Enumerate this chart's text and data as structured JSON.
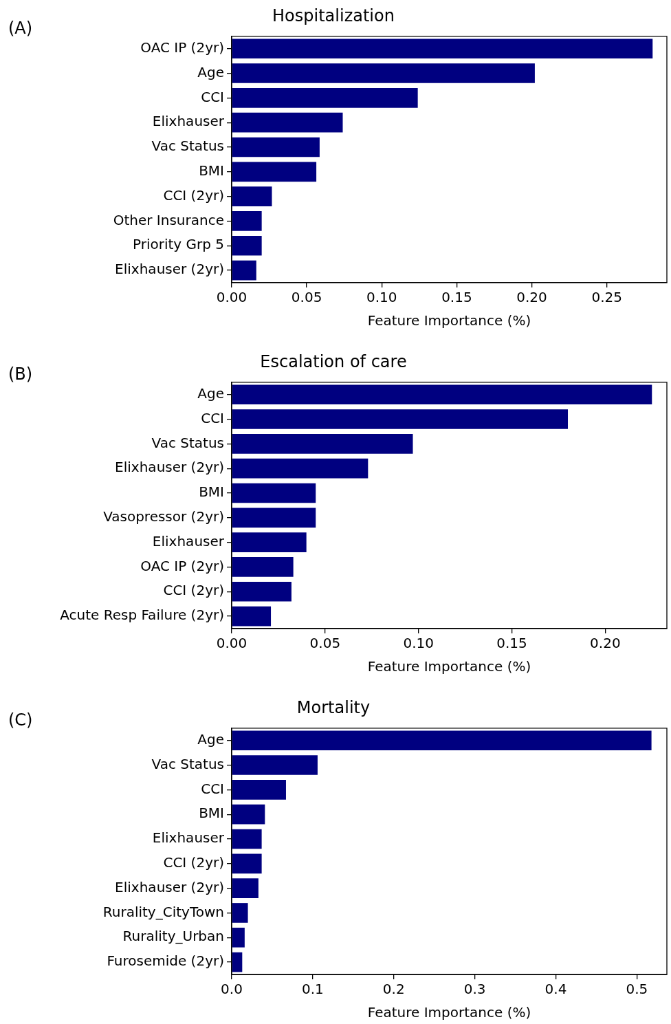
{
  "chart_data": [
    {
      "type": "bar",
      "orientation": "horizontal",
      "title": "Hospitalization",
      "xlabel": "Feature Importance (%)",
      "annotations": [
        "(A)"
      ],
      "grid": false,
      "legend": false,
      "categories": [
        "OAC IP (2yr)",
        "Age",
        "CCI",
        "Elixhauser",
        "Vac Status",
        "BMI",
        "CCI (2yr)",
        "Other Insurance",
        "Priority Grp 5",
        "Elixhauser (2yr)"
      ],
      "values": [
        0.2805,
        0.202,
        0.124,
        0.074,
        0.0586,
        0.0564,
        0.0268,
        0.02,
        0.02,
        0.0164
      ],
      "color": "#000080",
      "xlim": [
        0,
        0.29
      ],
      "xticks": [
        {
          "value": 0,
          "label": "0.00"
        },
        {
          "value": 0.05,
          "label": "0.05"
        },
        {
          "value": 0.1,
          "label": "0.10"
        },
        {
          "value": 0.15,
          "label": "0.15"
        },
        {
          "value": 0.2,
          "label": "0.20"
        },
        {
          "value": 0.25,
          "label": "0.25"
        }
      ]
    },
    {
      "type": "bar",
      "orientation": "horizontal",
      "title": "Escalation of care",
      "xlabel": "Feature Importance (%)",
      "annotations": [
        "(B)"
      ],
      "grid": false,
      "legend": false,
      "categories": [
        "Age",
        "CCI",
        "Vac Status",
        "Elixhauser (2yr)",
        "BMI",
        "Vasopressor (2yr)",
        "Elixhauser",
        "OAC IP (2yr)",
        "CCI (2yr)",
        "Acute Resp Failure (2yr)"
      ],
      "values": [
        0.225,
        0.18,
        0.097,
        0.073,
        0.045,
        0.045,
        0.04,
        0.033,
        0.032,
        0.021
      ],
      "color": "#000080",
      "xlim": [
        0,
        0.233
      ],
      "xticks": [
        {
          "value": 0,
          "label": "0.00"
        },
        {
          "value": 0.05,
          "label": "0.05"
        },
        {
          "value": 0.1,
          "label": "0.10"
        },
        {
          "value": 0.15,
          "label": "0.15"
        },
        {
          "value": 0.2,
          "label": "0.20"
        }
      ]
    },
    {
      "type": "bar",
      "orientation": "horizontal",
      "title": "Mortality",
      "xlabel": "Feature Importance (%)",
      "annotations": [
        "(C)"
      ],
      "grid": false,
      "legend": false,
      "categories": [
        "Age",
        "Vac Status",
        "CCI",
        "BMI",
        "Elixhauser",
        "CCI (2yr)",
        "Elixhauser (2yr)",
        "Rurality_CityTown",
        "Rurality_Urban",
        "Furosemide (2yr)"
      ],
      "values": [
        0.518,
        0.106,
        0.067,
        0.041,
        0.037,
        0.037,
        0.033,
        0.02,
        0.016,
        0.013
      ],
      "color": "#000080",
      "xlim": [
        0,
        0.537
      ],
      "xticks": [
        {
          "value": 0,
          "label": "0.0"
        },
        {
          "value": 0.1,
          "label": "0.1"
        },
        {
          "value": 0.2,
          "label": "0.2"
        },
        {
          "value": 0.3,
          "label": "0.3"
        },
        {
          "value": 0.4,
          "label": "0.4"
        },
        {
          "value": 0.5,
          "label": "0.5"
        }
      ]
    }
  ]
}
